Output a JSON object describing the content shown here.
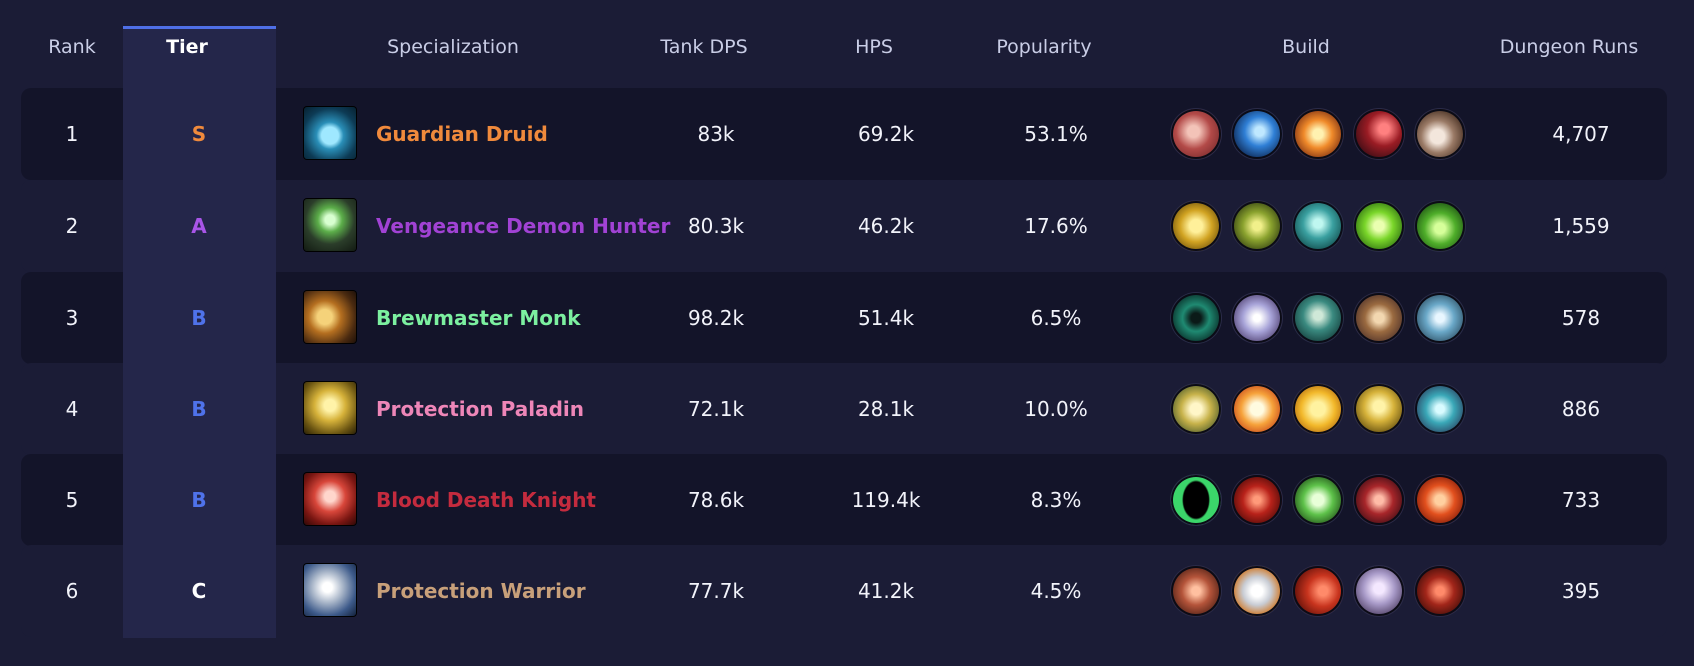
{
  "headers": {
    "rank": "Rank",
    "tier": "Tier",
    "specialization": "Specialization",
    "tank_dps": "Tank DPS",
    "hps": "HPS",
    "popularity": "Popularity",
    "build": "Build",
    "dungeon_runs": "Dungeon Runs"
  },
  "colors": {
    "tier_S": "#f08a3c",
    "tier_A": "#a855e8",
    "tier_B": "#4f72ea",
    "tier_C": "#ffffff"
  },
  "rows": [
    {
      "rank": "1",
      "tier": "S",
      "spec": "Guardian Druid",
      "spec_color": "#f08a3c",
      "spec_icon": "paw-icon",
      "tank_dps": "83k",
      "hps": "69.2k",
      "popularity": "53.1%",
      "runs": "4,707",
      "build": [
        "bleeding-wound-icon",
        "blue-lightning-icon",
        "fiery-burst-icon",
        "red-beast-icon",
        "claw-icon"
      ]
    },
    {
      "rank": "2",
      "tier": "A",
      "spec": "Vengeance Demon Hunter",
      "spec_color": "#a142d4",
      "spec_icon": "demon-hunter-icon",
      "tank_dps": "80.3k",
      "hps": "46.2k",
      "popularity": "17.6%",
      "runs": "1,559",
      "build": [
        "golden-glaive-icon",
        "fel-demon-face-icon",
        "teal-spirit-icon",
        "fel-swirl-icon",
        "green-fel-fire-icon"
      ]
    },
    {
      "rank": "3",
      "tier": "B",
      "spec": "Brewmaster Monk",
      "spec_color": "#7cf0a0",
      "spec_icon": "brew-keg-icon",
      "tank_dps": "98.2k",
      "hps": "51.4k",
      "popularity": "6.5%",
      "runs": "578",
      "build": [
        "jade-vortex-icon",
        "chi-wave-icon",
        "teal-fist-icon",
        "bronze-mask-icon",
        "storm-icon"
      ]
    },
    {
      "rank": "4",
      "tier": "B",
      "spec": "Protection Paladin",
      "spec_color": "#ee86b8",
      "spec_icon": "golden-helm-icon",
      "tank_dps": "72.1k",
      "hps": "28.1k",
      "popularity": "10.0%",
      "runs": "886",
      "build": [
        "holy-lion-icon",
        "holy-pillar-icon",
        "golden-silhouette-icon",
        "golden-helm-icon",
        "ornate-shield-icon"
      ]
    },
    {
      "rank": "5",
      "tier": "B",
      "spec": "Blood Death Knight",
      "spec_color": "#c42b3e",
      "spec_icon": "blood-skull-icon",
      "tank_dps": "78.6k",
      "hps": "119.4k",
      "popularity": "8.3%",
      "runs": "733",
      "build": [
        "death-gate-icon",
        "blood-orb-icon",
        "green-skull-icon",
        "blood-blade-icon",
        "crimson-flame-icon"
      ]
    },
    {
      "rank": "6",
      "tier": "C",
      "spec": "Protection Warrior",
      "spec_color": "#c8a07a",
      "spec_icon": "steel-shield-icon",
      "tank_dps": "77.7k",
      "hps": "41.2k",
      "popularity": "4.5%",
      "runs": "395",
      "build": [
        "warrior-rage-icon",
        "silver-shield-icon",
        "red-shout-icon",
        "valkyr-icon",
        "berserker-icon"
      ]
    }
  ]
}
